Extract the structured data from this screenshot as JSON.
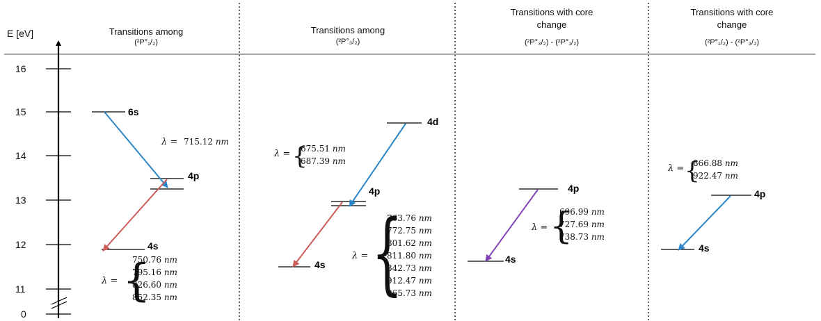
{
  "axis": {
    "label": "E [eV]",
    "ticks": [
      "16",
      "15",
      "14",
      "13",
      "12",
      "11",
      "0"
    ]
  },
  "panels": [
    {
      "title_line1": "Transitions among",
      "title_line2": "(²P°₁/₂)"
    },
    {
      "title_line1": "Transitions among",
      "title_line2": "(²P°₃/₂)"
    },
    {
      "title_line1": "Transitions with core",
      "title_line2": "change",
      "title_line3": "(²P°₃/₂)  -  (²P°₁/₂)"
    },
    {
      "title_line1": "Transitions with core",
      "title_line2": "change",
      "title_line3": "(²P°₁/₂)  -  (²P°₃/₂)"
    }
  ],
  "levels": {
    "p1_6s": "6s",
    "p1_4p": "4p",
    "p1_4s": "4s",
    "p2_4d": "4d",
    "p2_4p": "4p",
    "p2_4s": "4s",
    "p3_4p": "4p",
    "p3_4s": "4s",
    "p4_4p": "4p",
    "p4_4s": "4s"
  },
  "lambda_symbol": "λ =",
  "unit": "nm",
  "wavelengths": {
    "p1_6s_4p": [
      "715.12"
    ],
    "p1_4p_4s": [
      "750.76",
      "795.16",
      "826.60",
      "852.35"
    ],
    "p2_4d_4p": [
      "675.51",
      "687.39"
    ],
    "p2_4p_4s": [
      "763.76",
      "772.75",
      "801.62",
      "811.80",
      "842.73",
      "912.47",
      "965.73"
    ],
    "p3_4p_4s": [
      "696.99",
      "727.69",
      "738.73"
    ],
    "p4_4p_4s": [
      "866.88",
      "922.47"
    ]
  },
  "colors": {
    "blue_arrow": "#2b86c8",
    "red_arrow": "#cc5c58",
    "purple_arrow": "#8344b8",
    "divider": "#333333"
  }
}
